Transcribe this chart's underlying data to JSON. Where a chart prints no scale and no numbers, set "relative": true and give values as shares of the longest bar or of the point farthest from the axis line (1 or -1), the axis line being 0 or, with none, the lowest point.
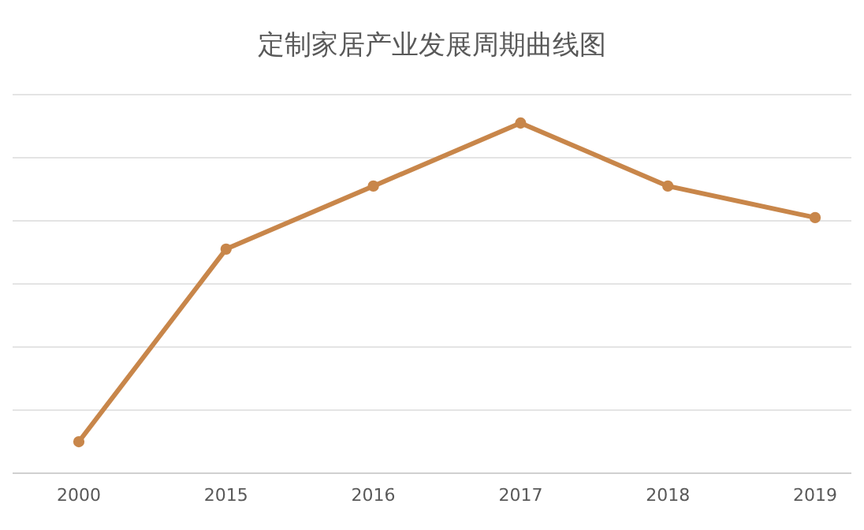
{
  "chart_data": {
    "type": "line",
    "title": "定制家居产业发展周期曲线图",
    "categories": [
      "2000",
      "2015",
      "2016",
      "2017",
      "2018",
      "2019"
    ],
    "series": [
      {
        "color": "#c8864a",
        "values": [
          0.09,
          0.64,
          0.82,
          1,
          0.82,
          0.73
        ]
      }
    ],
    "relative": true,
    "grid": "y",
    "marker": "circle",
    "line_style": "solid"
  }
}
